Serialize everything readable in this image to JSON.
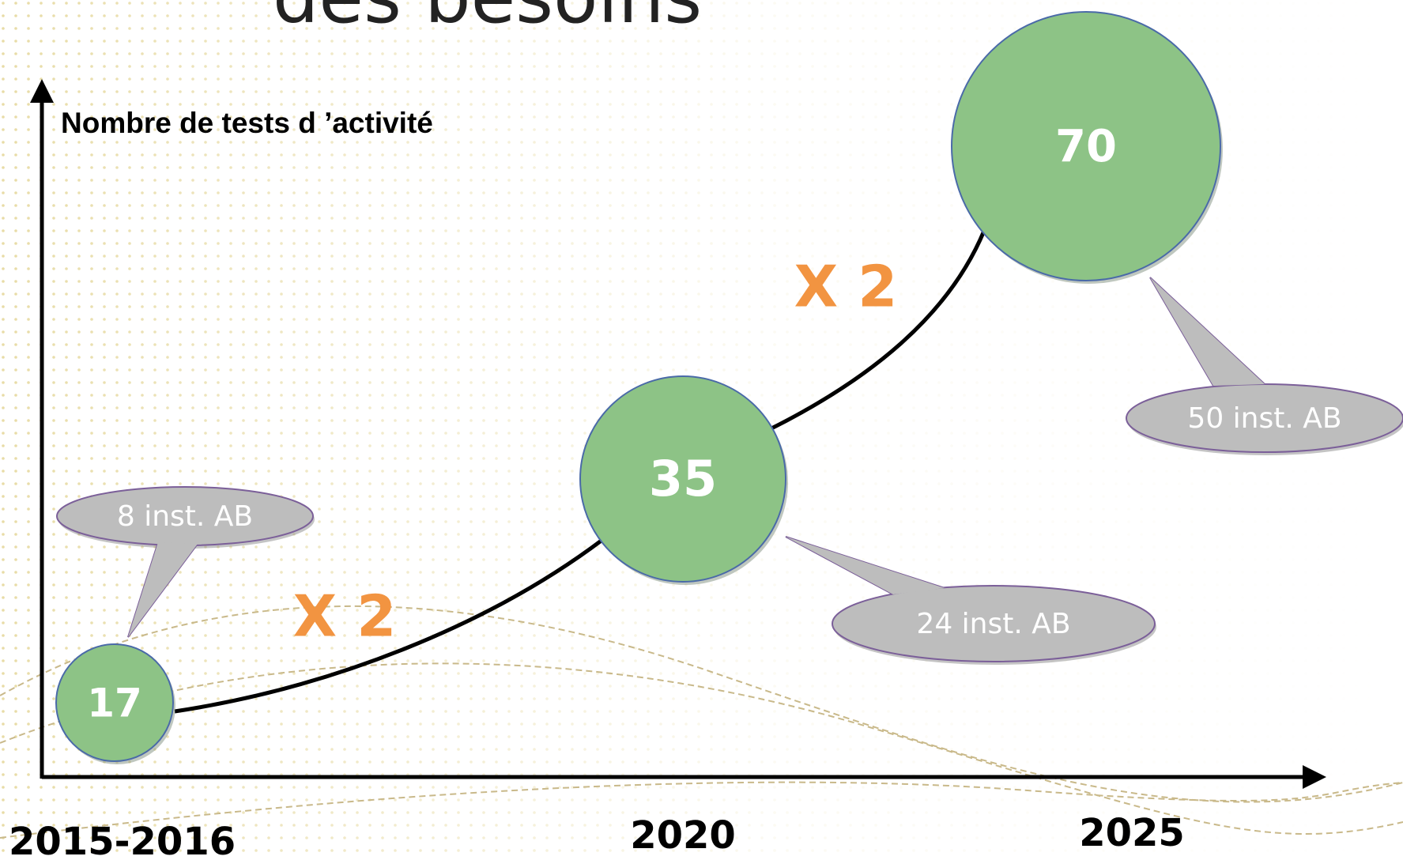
{
  "title": "des besoins",
  "y_axis_label": "Nombre de tests d ’activité",
  "nodes": [
    {
      "value": "17",
      "note": "8 inst. AB",
      "period": "2015-2016"
    },
    {
      "value": "35",
      "note": "24 inst. AB",
      "period": "2020"
    },
    {
      "value": "70",
      "note": "50 inst. AB",
      "period": "2025"
    }
  ],
  "growth": [
    "X 2",
    "X 2"
  ]
}
